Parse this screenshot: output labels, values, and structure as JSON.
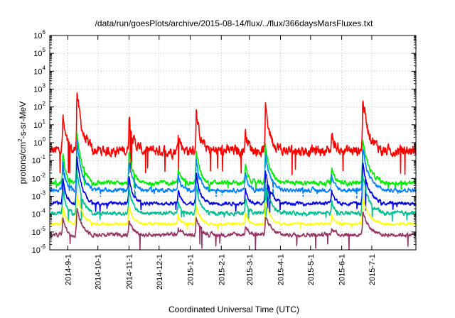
{
  "chart_data": {
    "type": "line",
    "title": "/data/run/goesPlots/archive/2015-08-14/flux/../flux/366daysMarsFluxes.txt",
    "xlabel": "Coordinated Universal Time (UTC)",
    "ylabel_parts": [
      "protons/cm",
      "2",
      "-s-sr-MeV"
    ],
    "yscale": "log",
    "ylim": [
      1e-06,
      1000000.0
    ],
    "xlim": [
      "2014-08-14",
      "2015-08-14"
    ],
    "grid": true,
    "x_tick_labels": [
      "2014-9-1",
      "2014-10-1",
      "2014-11-1",
      "2014-12-1",
      "2015-1-1",
      "2015-2-1",
      "2015-3-1",
      "2015-4-1",
      "2015-5-1",
      "2015-6-1",
      "2015-7-1"
    ],
    "x_tick_dates": [
      "2014-09-01",
      "2014-10-01",
      "2014-11-01",
      "2014-12-01",
      "2015-01-01",
      "2015-02-01",
      "2015-03-01",
      "2015-04-01",
      "2015-05-01",
      "2015-06-01",
      "2015-07-01"
    ],
    "y_tick_exponents": [
      -6,
      -5,
      -4,
      -3,
      -2,
      -1,
      0,
      1,
      2,
      3,
      4,
      5,
      6
    ],
    "events": [
      {
        "date": "2014-08-27",
        "amp": 2.0,
        "width": 3
      },
      {
        "date": "2014-09-10",
        "amp": 3.5,
        "width": 5
      },
      {
        "date": "2014-11-01",
        "amp": 2.0,
        "width": 4
      },
      {
        "date": "2014-12-20",
        "amp": 1.0,
        "width": 3
      },
      {
        "date": "2015-01-07",
        "amp": 2.2,
        "width": 4
      },
      {
        "date": "2015-02-25",
        "amp": 1.2,
        "width": 3
      },
      {
        "date": "2015-03-17",
        "amp": 2.5,
        "width": 5
      },
      {
        "date": "2015-05-22",
        "amp": 1.0,
        "width": 3
      },
      {
        "date": "2015-06-22",
        "amp": 3.0,
        "width": 6
      }
    ],
    "series": [
      {
        "color": "#ff0000",
        "base_log": -0.45,
        "noise": 0.38,
        "event_scale": 1.0,
        "floor_log": -1.8
      },
      {
        "color": "#00ee00",
        "base_log": -2.25,
        "noise": 0.16,
        "event_scale": 0.85,
        "floor_log": -2.8
      },
      {
        "color": "#0080ff",
        "base_log": -2.65,
        "noise": 0.14,
        "event_scale": 0.8,
        "floor_log": -3.1
      },
      {
        "color": "#ffffff",
        "base_log": -2.9,
        "noise": 0.08,
        "event_scale": 0.6,
        "floor_log": -3.2
      },
      {
        "color": "#0000ee",
        "base_log": -3.4,
        "noise": 0.12,
        "event_scale": 0.75,
        "floor_log": -3.9
      },
      {
        "color": "#00c090",
        "base_log": -3.95,
        "noise": 0.14,
        "event_scale": 0.7,
        "floor_log": -4.4
      },
      {
        "color": "#ffff00",
        "base_log": -4.55,
        "noise": 0.09,
        "event_scale": 0.5,
        "floor_log": -4.9
      },
      {
        "color": "#993366",
        "base_log": -5.15,
        "noise": 0.14,
        "event_scale": 0.45,
        "floor_log": -6.0
      }
    ]
  }
}
